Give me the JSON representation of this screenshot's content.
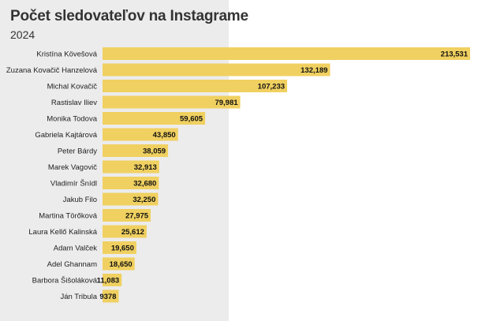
{
  "chart_data": {
    "type": "bar",
    "orientation": "horizontal",
    "title": "Počet sledovateľov na Instagrame",
    "subtitle": "2024",
    "categories": [
      "Kristína Kövešová",
      "Zuzana Kovačič Hanzelová",
      "Michal Kovačič",
      "Rastislav Iliev",
      "Monika Todova",
      "Gabriela Kajtárová",
      "Peter Bárdy",
      "Marek Vagovič",
      "Vladimír Šnídl",
      "Jakub Filo",
      "Martina Törőková",
      "Laura Kellő Kalinská",
      "Adam Valček",
      "Adel Ghannam",
      "Barbora Šišoláková",
      "Ján Tribula"
    ],
    "values": [
      213531,
      132189,
      107233,
      79981,
      59605,
      43850,
      38059,
      32913,
      32680,
      32250,
      27975,
      25612,
      19650,
      18650,
      11083,
      9378
    ],
    "value_labels": [
      "213,531",
      "132,189",
      "107,233",
      "79,981",
      "59,605",
      "43,850",
      "38,059",
      "32,913",
      "32,680",
      "32,250",
      "27,975",
      "25,612",
      "19,650",
      "18,650",
      "11,083",
      "9378"
    ],
    "xlim": [
      0,
      213531
    ],
    "grid": false,
    "legend": "none",
    "colors": {
      "bar": "#f0d060",
      "panel": "#ececec"
    }
  }
}
